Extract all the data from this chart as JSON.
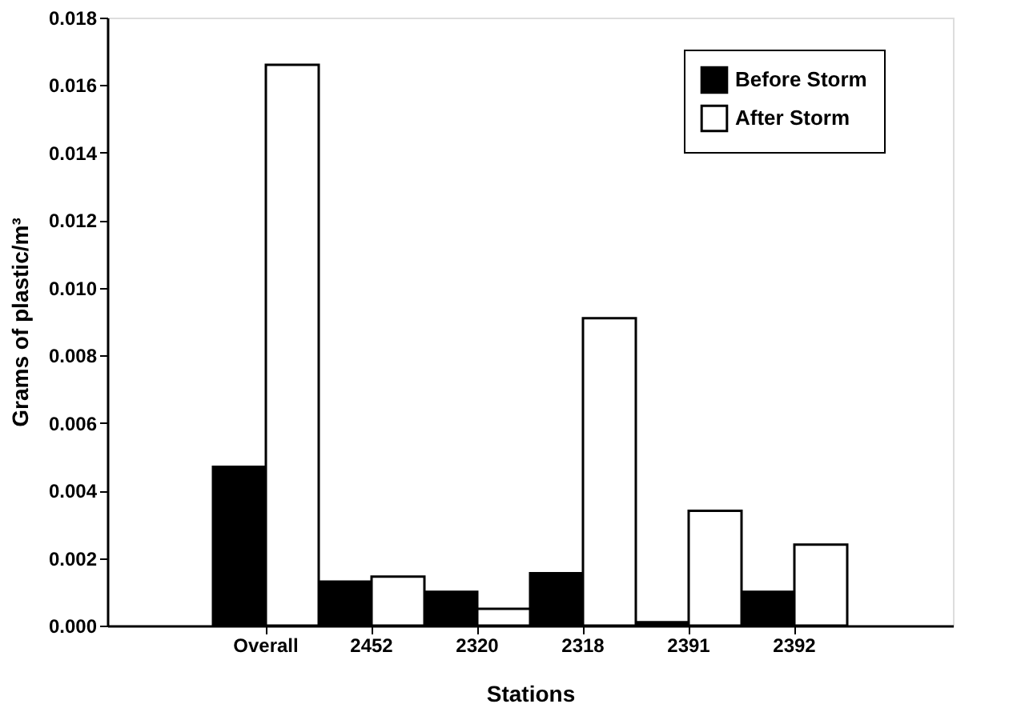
{
  "chart_data": {
    "type": "bar",
    "xlabel": "Stations",
    "ylabel": "Grams of plastic/m³",
    "categories": [
      "Overall",
      "2452",
      "2320",
      "2318",
      "2391",
      "2392"
    ],
    "series": [
      {
        "name": "Before Storm",
        "color": "#000000",
        "values": [
          0.0047,
          0.0013,
          0.001,
          0.00155,
          0.0001,
          0.001
        ]
      },
      {
        "name": "After Storm",
        "color": "#ffffff",
        "values": [
          0.0166,
          0.00145,
          0.0005,
          0.0091,
          0.0034,
          0.0024
        ]
      }
    ],
    "ylim": [
      0,
      0.018
    ],
    "yticks": [
      {
        "value": 0,
        "label": "0.000"
      },
      {
        "value": 0.002,
        "label": "0.002"
      },
      {
        "value": 0.004,
        "label": "0.004"
      },
      {
        "value": 0.006,
        "label": "0.006"
      },
      {
        "value": 0.008,
        "label": "0.008"
      },
      {
        "value": 0.01,
        "label": "0.010"
      },
      {
        "value": 0.012,
        "label": "0.012"
      },
      {
        "value": 0.014,
        "label": "0.014"
      },
      {
        "value": 0.016,
        "label": "0.016"
      },
      {
        "value": 0.018,
        "label": "0.018"
      }
    ],
    "grid": false,
    "legend": "top right"
  }
}
